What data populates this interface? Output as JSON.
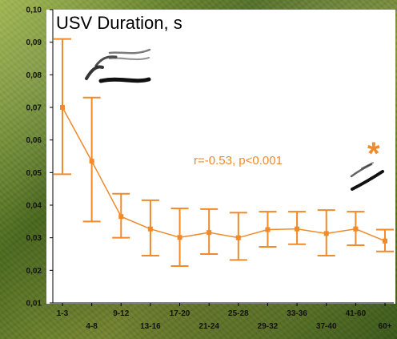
{
  "chart_data": {
    "type": "line",
    "title": "USV Duration, s",
    "categories": [
      "1-3",
      "4-8",
      "9-12",
      "13-16",
      "17-20",
      "21-24",
      "25-28",
      "29-32",
      "33-36",
      "37-40",
      "41-60",
      "60+"
    ],
    "values": [
      0.07,
      0.0535,
      0.0365,
      0.0327,
      0.0301,
      0.0316,
      0.03,
      0.0325,
      0.0327,
      0.0313,
      0.0327,
      0.029
    ],
    "error_low": [
      0.0495,
      0.035,
      0.03,
      0.0245,
      0.0213,
      0.025,
      0.0232,
      0.0272,
      0.028,
      0.0245,
      0.0277,
      0.0258
    ],
    "error_high": [
      0.091,
      0.073,
      0.0435,
      0.0415,
      0.039,
      0.0388,
      0.0377,
      0.038,
      0.038,
      0.0385,
      0.038,
      0.0325
    ],
    "ylim": [
      0.01,
      0.1
    ],
    "yticks": [
      0.01,
      0.02,
      0.03,
      0.04,
      0.05,
      0.06,
      0.07,
      0.08,
      0.09,
      0.1
    ],
    "ytick_labels": [
      "0,01",
      "0,02",
      "0,03",
      "0,04",
      "0,05",
      "0,06",
      "0,07",
      "0,08",
      "0,09",
      "0,10"
    ],
    "annotation": "r=-0.53, p<0.001",
    "significance_marker": "*",
    "colors": {
      "series": "#f08a2a",
      "axis": "#000000",
      "plot_bg": "#ffffff"
    }
  }
}
